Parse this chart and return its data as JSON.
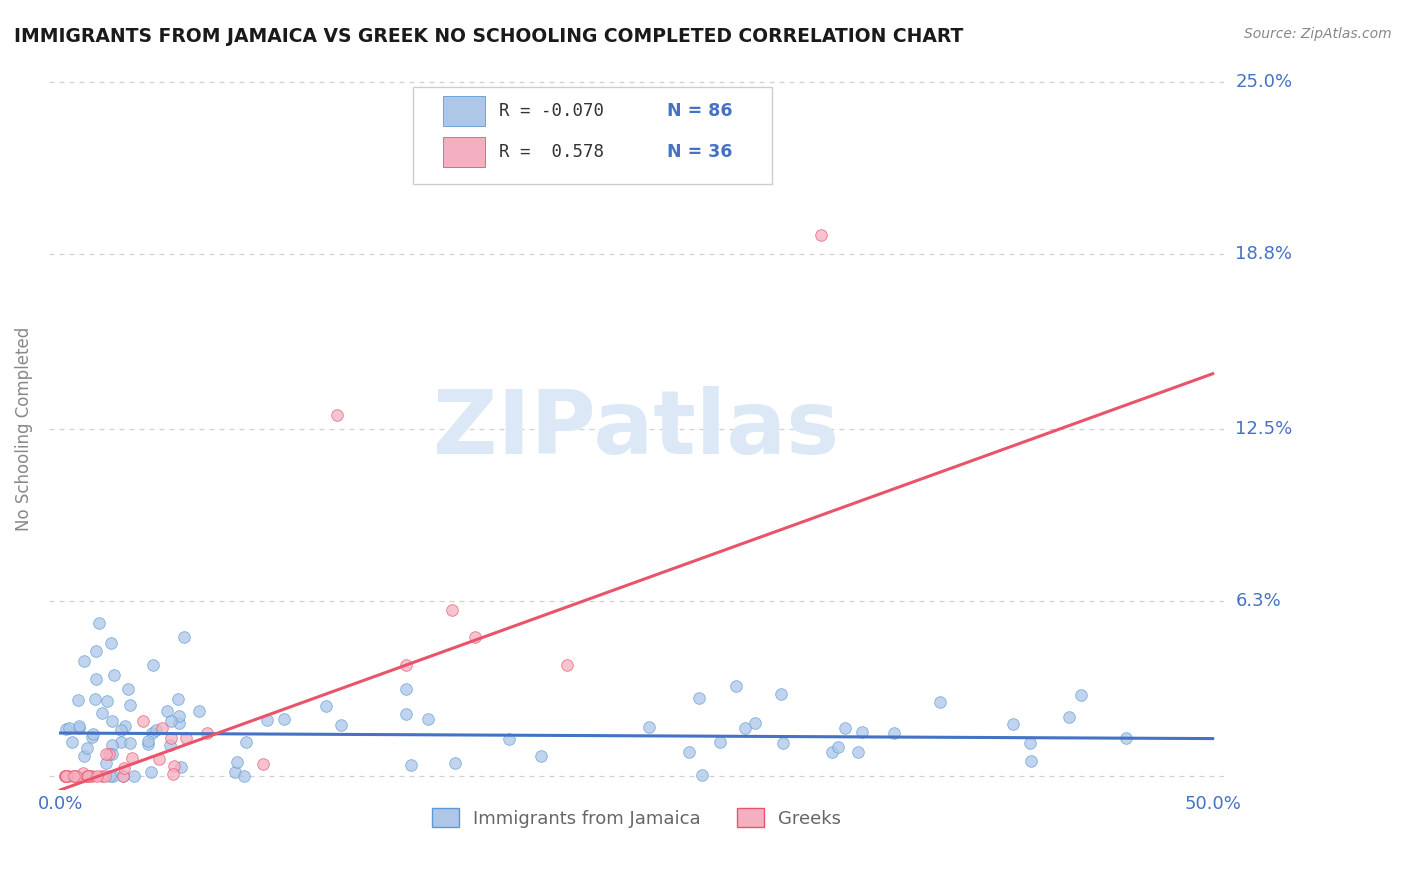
{
  "title": "IMMIGRANTS FROM JAMAICA VS GREEK NO SCHOOLING COMPLETED CORRELATION CHART",
  "source": "Source: ZipAtlas.com",
  "ylabel": "No Schooling Completed",
  "xlim": [
    -0.005,
    0.505
  ],
  "ylim": [
    -0.005,
    0.255
  ],
  "ytick_vals": [
    0.0,
    0.063,
    0.125,
    0.188,
    0.25
  ],
  "ytick_labels": [
    "",
    "6.3%",
    "12.5%",
    "18.8%",
    "25.0%"
  ],
  "xtick_vals": [
    0.0,
    0.5
  ],
  "xtick_labels": [
    "0.0%",
    "50.0%"
  ],
  "r_jamaica": "-0.070",
  "n_jamaica": "86",
  "r_greek": "0.578",
  "n_greek": "36",
  "color_jamaica_fill": "#aec6e8",
  "color_jamaica_edge": "#5b9bd5",
  "color_greek_fill": "#f4afc0",
  "color_greek_edge": "#e8546a",
  "color_line_jamaica": "#4472c4",
  "color_line_greek": "#e8546a",
  "color_tick_labels": "#4472c4",
  "color_ylabel": "#888888",
  "background_color": "#ffffff",
  "grid_color": "#d0d0d0",
  "slope_jamaica": -0.004,
  "intercept_jamaica": 0.0155,
  "slope_greek": 0.3,
  "intercept_greek": -0.005
}
